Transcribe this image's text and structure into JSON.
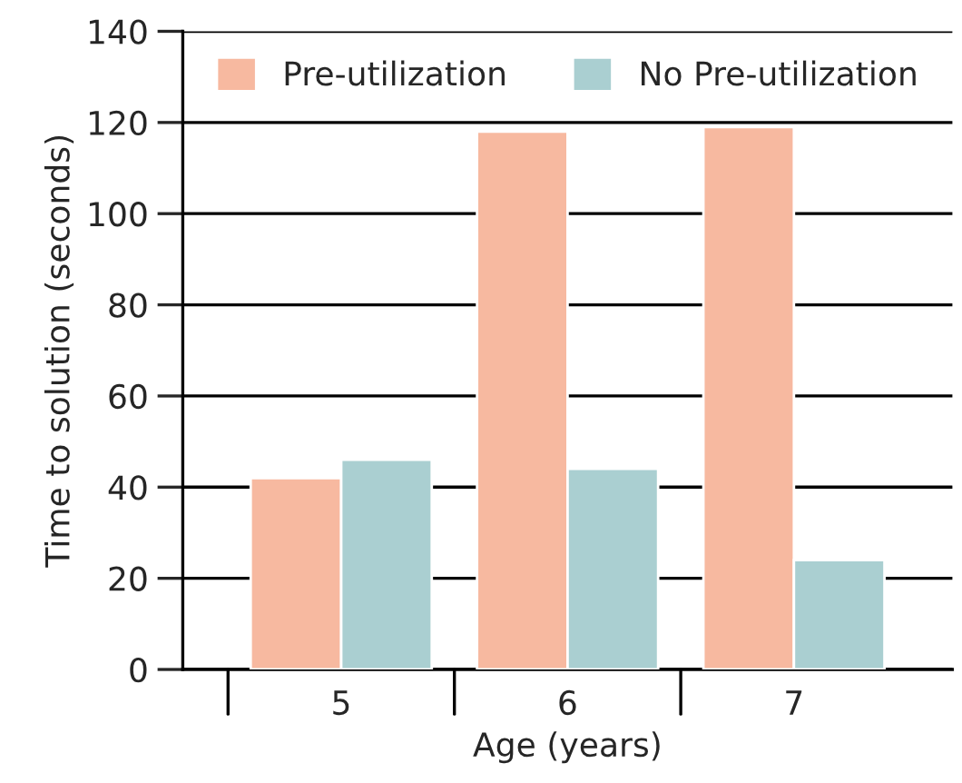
{
  "chart_data": {
    "type": "bar",
    "xlabel": "Age (years)",
    "ylabel": "Time to solution (seconds)",
    "categories": [
      "5",
      "6",
      "7"
    ],
    "series": [
      {
        "name": "Pre-utilization",
        "color": "#f7b9a0",
        "values": [
          42,
          118,
          119
        ]
      },
      {
        "name": "No Pre-utilization",
        "color": "#aacfd1",
        "values": [
          46,
          44,
          24
        ]
      }
    ],
    "ylim": [
      0,
      140
    ],
    "yticks": [
      0,
      20,
      40,
      60,
      80,
      100,
      120,
      140
    ],
    "grid": "y",
    "legend": "top"
  }
}
